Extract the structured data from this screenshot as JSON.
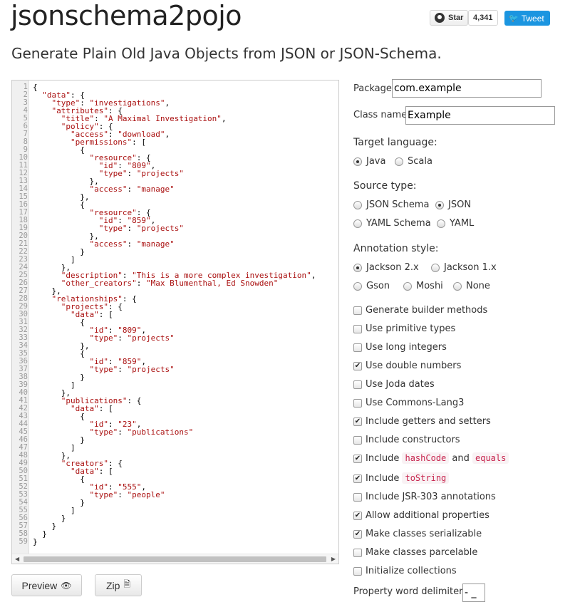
{
  "header": {
    "title": "jsonschema2pojo",
    "subtitle": "Generate Plain Old Java Objects from JSON or JSON-Schema.",
    "github_star_label": "Star",
    "github_star_count": "4,341",
    "tweet_label": "Tweet"
  },
  "editor": {
    "lines": [
      "{",
      "  \"data\": {",
      "    \"type\": \"investigations\",",
      "    \"attributes\": {",
      "      \"title\": \"A Maximal Investigation\",",
      "      \"policy\": {",
      "        \"access\": \"download\",",
      "        \"permissions\": [",
      "          {",
      "            \"resource\": {",
      "              \"id\": \"809\",",
      "              \"type\": \"projects\"",
      "            },",
      "            \"access\": \"manage\"",
      "          },",
      "          {",
      "            \"resource\": {",
      "              \"id\": \"859\",",
      "              \"type\": \"projects\"",
      "            },",
      "            \"access\": \"manage\"",
      "          }",
      "        ]",
      "      },",
      "      \"description\": \"This is a more complex investigation\",",
      "      \"other_creators\": \"Max Blumenthal, Ed Snowden\"",
      "    },",
      "    \"relationships\": {",
      "      \"projects\": {",
      "        \"data\": [",
      "          {",
      "            \"id\": \"809\",",
      "            \"type\": \"projects\"",
      "          },",
      "          {",
      "            \"id\": \"859\",",
      "            \"type\": \"projects\"",
      "          }",
      "        ]",
      "      },",
      "      \"publications\": {",
      "        \"data\": [",
      "          {",
      "            \"id\": \"23\",",
      "            \"type\": \"publications\"",
      "          }",
      "        ]",
      "      },",
      "      \"creators\": {",
      "        \"data\": [",
      "          {",
      "            \"id\": \"555\",",
      "            \"type\": \"people\"",
      "          }",
      "        ]",
      "      }",
      "    }",
      "  }",
      "}"
    ]
  },
  "buttons": {
    "preview_label": "Preview",
    "zip_label": "Zip"
  },
  "form": {
    "package_label": "Package",
    "package_value": "com.example",
    "classname_label": "Class name",
    "classname_value": "Example",
    "target_language_label": "Target language:",
    "target_language_options": [
      "Java",
      "Scala"
    ],
    "target_language_selected": "Java",
    "source_type_label": "Source type:",
    "source_type_options": [
      "JSON Schema",
      "JSON",
      "YAML Schema",
      "YAML"
    ],
    "source_type_selected": "JSON",
    "annotation_style_label": "Annotation style:",
    "annotation_style_options": [
      "Jackson 2.x",
      "Jackson 1.x",
      "Gson",
      "Moshi",
      "None"
    ],
    "annotation_style_selected": "Jackson 2.x",
    "checkboxes": [
      {
        "label": "Generate builder methods",
        "checked": false
      },
      {
        "label": "Use primitive types",
        "checked": false
      },
      {
        "label": "Use long integers",
        "checked": false
      },
      {
        "label": "Use double numbers",
        "checked": true
      },
      {
        "label": "Use Joda dates",
        "checked": false
      },
      {
        "label": "Use Commons-Lang3",
        "checked": false
      },
      {
        "label": "Include getters and setters",
        "checked": true
      },
      {
        "label": "Include constructors",
        "checked": false
      },
      {
        "label": "Include",
        "code1": "hashCode",
        "and": "and",
        "code2": "equals",
        "checked": true
      },
      {
        "label": "Include",
        "code1": "toString",
        "checked": true
      },
      {
        "label": "Include JSR-303 annotations",
        "checked": false
      },
      {
        "label": "Allow additional properties",
        "checked": true
      },
      {
        "label": "Make classes serializable",
        "checked": true
      },
      {
        "label": "Make classes parcelable",
        "checked": false
      },
      {
        "label": "Initialize collections",
        "checked": false
      }
    ],
    "word_delimiters_label": "Property word delimiters:",
    "word_delimiters_value": "- _"
  }
}
